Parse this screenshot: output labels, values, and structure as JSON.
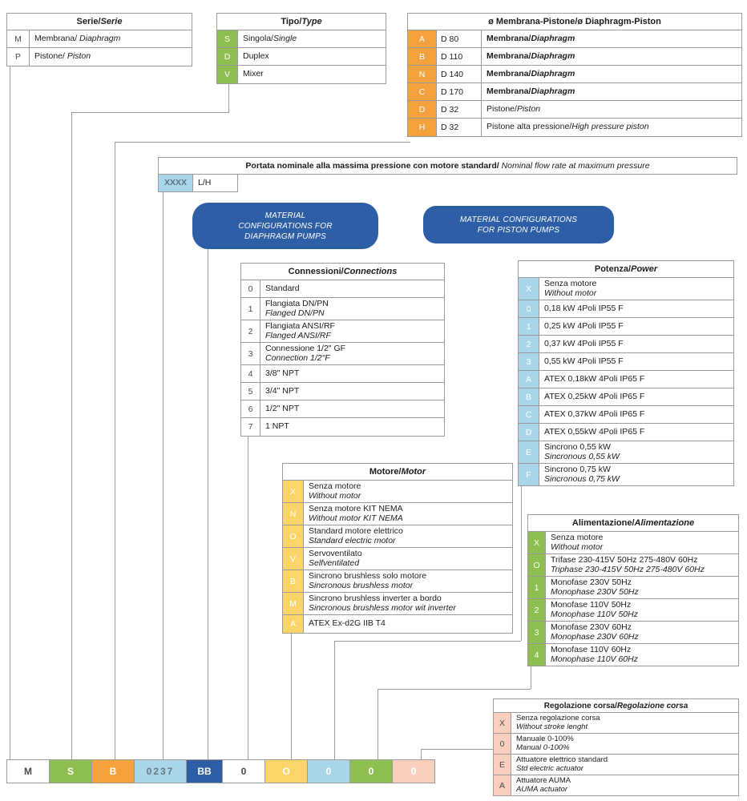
{
  "colors": {
    "green": "#8ebf50",
    "orange": "#f4a23d",
    "lightblue": "#a9d6e8",
    "darkblue": "#2e5fa6",
    "yellow": "#fbd569",
    "pink": "#f9cfc0",
    "white": "#ffffff",
    "line": "#9a9a9a"
  },
  "tables": [
    {
      "id": "serie",
      "title": [
        {
          "t": "Serie",
          "b": 1
        },
        {
          "t": "/",
          "b": 1
        },
        {
          "t": "Serie",
          "b": 1,
          "i": 1
        }
      ],
      "codeColor": "white",
      "darkCode": 1,
      "codeW": 28,
      "rows": [
        {
          "code": "M",
          "lines": [
            [
              {
                "t": "Membrana/ "
              },
              {
                "t": "Diaphragm",
                "i": 1
              }
            ]
          ]
        },
        {
          "code": "P",
          "lines": [
            [
              {
                "t": "Pistone/ "
              },
              {
                "t": "Piston",
                "i": 1
              }
            ]
          ]
        }
      ]
    },
    {
      "id": "tipo",
      "title": [
        {
          "t": "Tipo",
          "b": 1
        },
        {
          "t": "/",
          "b": 1
        },
        {
          "t": "Type",
          "b": 1,
          "i": 1
        }
      ],
      "codeColor": "green",
      "codeW": 26,
      "rows": [
        {
          "code": "S",
          "lines": [
            [
              {
                "t": "Singola/"
              },
              {
                "t": "Single",
                "i": 1
              }
            ]
          ]
        },
        {
          "code": "D",
          "lines": [
            [
              {
                "t": "Duplex"
              }
            ]
          ]
        },
        {
          "code": "V",
          "lines": [
            [
              {
                "t": "Mixer"
              }
            ]
          ]
        }
      ]
    },
    {
      "id": "membrana",
      "title": [
        {
          "t": "ø Membrana-Pistone",
          "b": 1
        },
        {
          "t": "/ø Diaphragm-Piston",
          "b": 1
        }
      ],
      "codeColor": "orange",
      "codeW": 36,
      "midW": 56,
      "rows": [
        {
          "code": "A",
          "mid": "D 80",
          "lines": [
            [
              {
                "t": "Membrana/",
                "b": 1
              },
              {
                "t": "Diaphragm",
                "b": 1,
                "i": 1
              }
            ]
          ]
        },
        {
          "code": "B",
          "mid": "D 110",
          "lines": [
            [
              {
                "t": "Membrana/",
                "b": 1
              },
              {
                "t": "Diaphragm",
                "b": 1,
                "i": 1
              }
            ]
          ]
        },
        {
          "code": "N",
          "mid": "D 140",
          "lines": [
            [
              {
                "t": "Membrana/",
                "b": 1
              },
              {
                "t": "Diaphragm",
                "b": 1,
                "i": 1
              }
            ]
          ]
        },
        {
          "code": "C",
          "mid": "D 170",
          "lines": [
            [
              {
                "t": "Membrana/",
                "b": 1
              },
              {
                "t": "Diaphragm",
                "b": 1,
                "i": 1
              }
            ]
          ]
        },
        {
          "code": "D",
          "mid": "D 32",
          "lines": [
            [
              {
                "t": "Pistone/"
              },
              {
                "t": "Piston",
                "i": 1
              }
            ]
          ]
        },
        {
          "code": "H",
          "mid": "D 32",
          "lines": [
            [
              {
                "t": "Pistone alta pressione/"
              },
              {
                "t": "High pressure piston",
                "i": 1
              }
            ]
          ]
        }
      ]
    },
    {
      "id": "connessioni",
      "title": [
        {
          "t": "Connessioni",
          "b": 1
        },
        {
          "t": "/",
          "b": 1
        },
        {
          "t": "Connections",
          "b": 1,
          "i": 1
        }
      ],
      "codeColor": "white",
      "darkCode": 1,
      "codeW": 24,
      "rows": [
        {
          "code": "0",
          "lines": [
            [
              {
                "t": "Standard"
              }
            ]
          ]
        },
        {
          "code": "1",
          "lines": [
            [
              {
                "t": "Flangiata DN/PN"
              }
            ],
            [
              {
                "t": "Flanged DN/PN",
                "i": 1
              }
            ]
          ]
        },
        {
          "code": "2",
          "lines": [
            [
              {
                "t": "Flangiata ANSI/RF"
              }
            ],
            [
              {
                "t": "Flanged ANSI/RF",
                "i": 1
              }
            ]
          ]
        },
        {
          "code": "3",
          "lines": [
            [
              {
                "t": "Connessione 1/2\" GF"
              }
            ],
            [
              {
                "t": "Connection 1/2\"F",
                "i": 1
              }
            ]
          ]
        },
        {
          "code": "4",
          "lines": [
            [
              {
                "t": "3/8\" NPT"
              }
            ]
          ]
        },
        {
          "code": "5",
          "lines": [
            [
              {
                "t": "3/4\" NPT"
              }
            ]
          ]
        },
        {
          "code": "6",
          "lines": [
            [
              {
                "t": "1/2\" NPT"
              }
            ]
          ]
        },
        {
          "code": "7",
          "lines": [
            [
              {
                "t": "1 NPT"
              }
            ]
          ]
        }
      ]
    },
    {
      "id": "potenza",
      "title": [
        {
          "t": "Potenza",
          "b": 1
        },
        {
          "t": "/",
          "b": 1
        },
        {
          "t": "Power",
          "b": 1,
          "i": 1
        }
      ],
      "codeColor": "lightblue",
      "codeW": 26,
      "rows": [
        {
          "code": "X",
          "lines": [
            [
              {
                "t": "Senza motore"
              }
            ],
            [
              {
                "t": "Without motor",
                "i": 1
              }
            ]
          ]
        },
        {
          "code": "0",
          "lines": [
            [
              {
                "t": "0,18 kW 4Poli IP55 F"
              }
            ]
          ]
        },
        {
          "code": "1",
          "lines": [
            [
              {
                "t": "0,25 kW 4Poli IP55 F"
              }
            ]
          ]
        },
        {
          "code": "2",
          "lines": [
            [
              {
                "t": "0,37 kW 4Poli IP55 F"
              }
            ]
          ]
        },
        {
          "code": "3",
          "lines": [
            [
              {
                "t": "0,55 kW 4Poli IP55 F"
              }
            ]
          ]
        },
        {
          "code": "A",
          "lines": [
            [
              {
                "t": "ATEX 0,18kW 4Poli IP65 F"
              }
            ]
          ]
        },
        {
          "code": "B",
          "lines": [
            [
              {
                "t": "ATEX 0,25kW 4Poli IP65 F"
              }
            ]
          ]
        },
        {
          "code": "C",
          "lines": [
            [
              {
                "t": "ATEX 0,37kW 4Poli IP65 F"
              }
            ]
          ]
        },
        {
          "code": "D",
          "lines": [
            [
              {
                "t": "ATEX 0,55kW 4Poli IP65 F"
              }
            ]
          ]
        },
        {
          "code": "E",
          "lines": [
            [
              {
                "t": "Sincrono 0,55 kW"
              }
            ],
            [
              {
                "t": "Sincronous 0,55 kW",
                "i": 1
              }
            ]
          ]
        },
        {
          "code": "F",
          "lines": [
            [
              {
                "t": "Sincrono 0,75 kW"
              }
            ],
            [
              {
                "t": "Sincronous 0,75 kW",
                "i": 1
              }
            ]
          ]
        }
      ]
    },
    {
      "id": "motore",
      "title": [
        {
          "t": "Motore",
          "b": 1
        },
        {
          "t": "/",
          "b": 1
        },
        {
          "t": "Motor",
          "b": 1,
          "i": 1
        }
      ],
      "codeColor": "yellow",
      "codeW": 26,
      "rows": [
        {
          "code": "X",
          "lines": [
            [
              {
                "t": "Senza motore"
              }
            ],
            [
              {
                "t": "Without motor",
                "i": 1
              }
            ]
          ]
        },
        {
          "code": "N",
          "lines": [
            [
              {
                "t": "Senza motore KIT NEMA"
              }
            ],
            [
              {
                "t": "Without motor KIT NEMA",
                "i": 1
              }
            ]
          ]
        },
        {
          "code": "O",
          "lines": [
            [
              {
                "t": "Standard motore elettrico"
              }
            ],
            [
              {
                "t": "Standard electric motor",
                "i": 1
              }
            ]
          ]
        },
        {
          "code": "V",
          "lines": [
            [
              {
                "t": "Servoventilato"
              }
            ],
            [
              {
                "t": "Selfventilated",
                "i": 1
              }
            ]
          ]
        },
        {
          "code": "B",
          "lines": [
            [
              {
                "t": "Sincrono brushless solo motore"
              }
            ],
            [
              {
                "t": "Sincronous brushless motor",
                "i": 1
              }
            ]
          ]
        },
        {
          "code": "M",
          "lines": [
            [
              {
                "t": "Sincrono brushless inverter a bordo"
              }
            ],
            [
              {
                "t": "Sincronous brushless motor wit inverter",
                "i": 1
              }
            ]
          ]
        },
        {
          "code": "A",
          "lines": [
            [
              {
                "t": "ATEX Ex-d2G IIB T4"
              }
            ]
          ]
        }
      ]
    },
    {
      "id": "alimentazione",
      "title": [
        {
          "t": "Alimentazione",
          "b": 1
        },
        {
          "t": "/",
          "b": 1
        },
        {
          "t": "Alimentazione",
          "b": 1,
          "i": 1
        }
      ],
      "codeColor": "green",
      "codeW": 22,
      "rows": [
        {
          "code": "X",
          "lines": [
            [
              {
                "t": "Senza motore"
              }
            ],
            [
              {
                "t": "Without motor",
                "i": 1
              }
            ]
          ]
        },
        {
          "code": "O",
          "lines": [
            [
              {
                "t": "Trifase 230-415V 50Hz 275-480V 60Hz"
              }
            ],
            [
              {
                "t": "Triphase 230-415V 50Hz 275-480V 60Hz",
                "i": 1
              }
            ]
          ]
        },
        {
          "code": "1",
          "lines": [
            [
              {
                "t": "Monofase 230V 50Hz"
              }
            ],
            [
              {
                "t": "Monophase 230V 50Hz",
                "i": 1
              }
            ]
          ]
        },
        {
          "code": "2",
          "lines": [
            [
              {
                "t": "Monofase 110V 50Hz"
              }
            ],
            [
              {
                "t": "Monophase 110V 50Hz",
                "i": 1
              }
            ]
          ]
        },
        {
          "code": "3",
          "lines": [
            [
              {
                "t": "Monofase 230V 60Hz"
              }
            ],
            [
              {
                "t": "Monophase 230V 60Hz",
                "i": 1
              }
            ]
          ]
        },
        {
          "code": "4",
          "lines": [
            [
              {
                "t": "Monofase 110V 60Hz"
              }
            ],
            [
              {
                "t": "Monophase 110V 60Hz",
                "i": 1
              }
            ]
          ]
        }
      ]
    },
    {
      "id": "regolazione",
      "compact": 1,
      "title": [
        {
          "t": "Regolazione corsa",
          "b": 1
        },
        {
          "t": "/",
          "b": 1
        },
        {
          "t": "Regolazione corsa",
          "b": 1,
          "i": 1
        }
      ],
      "codeColor": "pink",
      "darkCode": 1,
      "codeW": 22,
      "rows": [
        {
          "code": "X",
          "lines": [
            [
              {
                "t": "Senza regolazione corsa"
              }
            ],
            [
              {
                "t": "Without stroke lenght",
                "i": 1
              }
            ]
          ]
        },
        {
          "code": "0",
          "lines": [
            [
              {
                "t": "Manuale 0-100%"
              }
            ],
            [
              {
                "t": "Manual 0-100%",
                "i": 1
              }
            ]
          ]
        },
        {
          "code": "E",
          "lines": [
            [
              {
                "t": "Attuatore elettrico standard"
              }
            ],
            [
              {
                "t": "Std electric actuator",
                "i": 1
              }
            ]
          ]
        },
        {
          "code": "A",
          "lines": [
            [
              {
                "t": "Attuatore AUMA"
              }
            ],
            [
              {
                "t": "AUMA actuator",
                "i": 1
              }
            ]
          ]
        }
      ]
    }
  ],
  "portata": {
    "title_it": "Portata nominale alla massima pressione con motore standard/ ",
    "title_en": "Nominal flow rate at maximum pressure",
    "code": "XXXX",
    "unit": "L/H"
  },
  "badges": [
    {
      "lines": [
        "MATERIAL",
        "CONFIGURATIONS FOR",
        "DIAPHRAGM PUMPS"
      ]
    },
    {
      "lines": [
        "MATERIAL CONFIGURATIONS",
        "FOR PISTON PUMPS"
      ]
    }
  ],
  "code_row": [
    "M",
    "S",
    "B",
    "0237",
    "BB",
    "0",
    "O",
    "0",
    "0",
    "0"
  ]
}
